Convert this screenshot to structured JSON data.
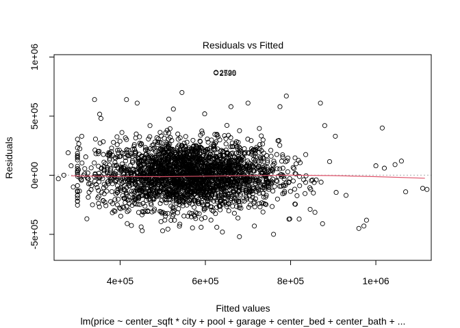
{
  "chart_data": {
    "type": "scatter",
    "title": "Residuals vs Fitted",
    "xlabel": "Fitted values",
    "ylabel": "Residuals",
    "subtitle": "lm(price ~ center_sqft * city + pool + garage + center_bed + center_bath +  ...",
    "xlim": [
      245000,
      1130000
    ],
    "ylim": [
      -720000,
      1020000
    ],
    "x_ticks": [
      400000,
      600000,
      800000,
      1000000
    ],
    "x_tick_labels": [
      "4e+05",
      "6e+05",
      "8e+05",
      "1e+06"
    ],
    "y_ticks": [
      -500000,
      0,
      500000,
      1000000
    ],
    "y_tick_labels": [
      "-5e+05",
      "0e+00",
      "5e+05",
      "1e+06"
    ],
    "zero_line": 0,
    "colors": {
      "points": "#000000",
      "smooth": "#df536b",
      "zero_line": "#bebebe"
    },
    "grid": false,
    "legend": "none",
    "series": [
      {
        "role": "residual-points",
        "cluster": {
          "x_mean": 560000,
          "x_sd": 105000,
          "y_sd": 145000,
          "count": 2600
        },
        "points": [
          [
            255000,
            -30000
          ],
          [
            268000,
            0
          ],
          [
            278000,
            190000
          ],
          [
            285000,
            80000
          ],
          [
            290000,
            -100000
          ],
          [
            300000,
            -140000
          ],
          [
            310000,
            330000
          ],
          [
            340000,
            640000
          ],
          [
            355000,
            480000
          ],
          [
            390000,
            -160000
          ],
          [
            415000,
            640000
          ],
          [
            440000,
            610000
          ],
          [
            470000,
            420000
          ],
          [
            525000,
            560000
          ],
          [
            545000,
            700000
          ],
          [
            590000,
            -440000
          ],
          [
            640000,
            -480000
          ],
          [
            660000,
            580000
          ],
          [
            680000,
            -520000
          ],
          [
            700000,
            610000
          ],
          [
            715000,
            -430000
          ],
          [
            760000,
            -500000
          ],
          [
            775000,
            580000
          ],
          [
            790000,
            670000
          ],
          [
            820000,
            -370000
          ],
          [
            870000,
            610000
          ],
          [
            875000,
            -410000
          ],
          [
            880000,
            420000
          ],
          [
            905000,
            330000
          ],
          [
            930000,
            -170000
          ],
          [
            960000,
            -450000
          ],
          [
            972000,
            -430000
          ],
          [
            978000,
            -380000
          ],
          [
            1000000,
            80000
          ],
          [
            1015000,
            400000
          ],
          [
            1020000,
            60000
          ],
          [
            1045000,
            90000
          ],
          [
            1060000,
            120000
          ],
          [
            1070000,
            -140000
          ],
          [
            1110000,
            -110000
          ],
          [
            1120000,
            -120000
          ]
        ]
      },
      {
        "role": "lowess-smooth",
        "points": [
          [
            285000,
            -5000
          ],
          [
            400000,
            -10000
          ],
          [
            500000,
            -12000
          ],
          [
            600000,
            -8000
          ],
          [
            700000,
            -3000
          ],
          [
            800000,
            0
          ],
          [
            900000,
            -3000
          ],
          [
            1000000,
            -12000
          ],
          [
            1115000,
            -25000
          ]
        ]
      }
    ],
    "annotations": [
      {
        "label": "2729",
        "x": 625000,
        "y": 870000
      },
      {
        "label": "2590",
        "x": 625000,
        "y": 865000
      }
    ]
  }
}
